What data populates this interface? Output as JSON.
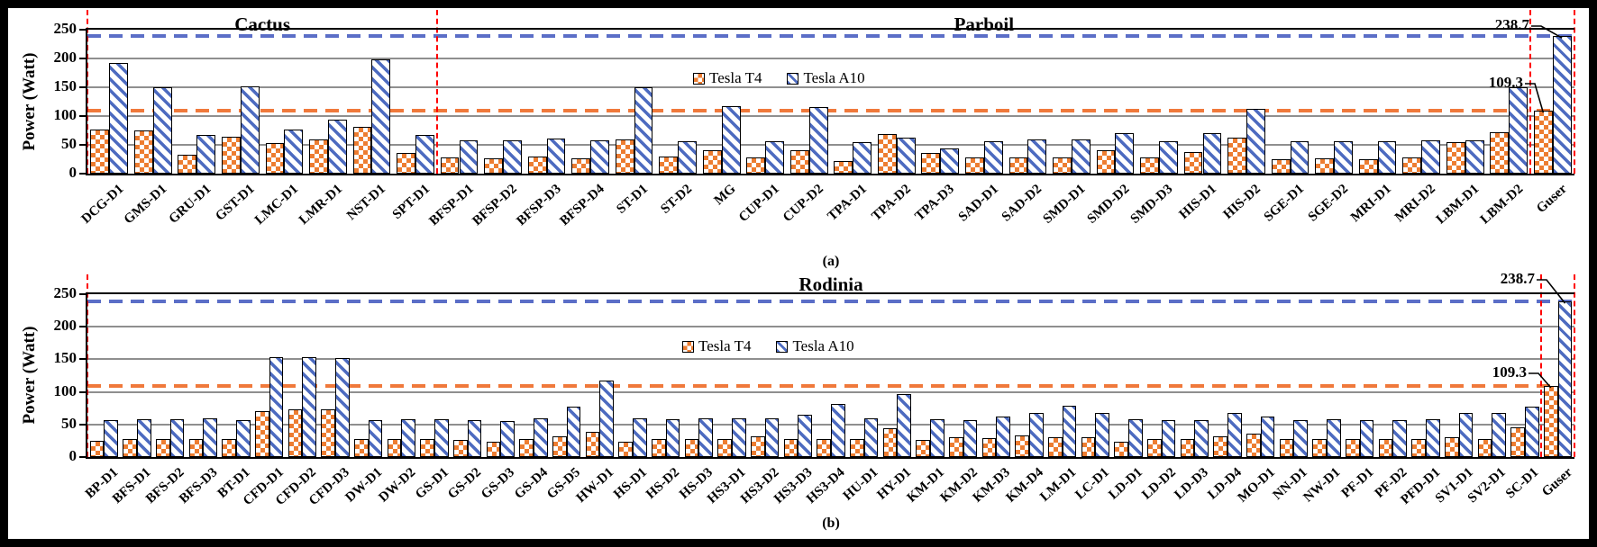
{
  "figure": {
    "ylabel": "Power (Watt)",
    "colors": {
      "tesla_t4": "#ED7D31",
      "tesla_a10": "#4D6BC0",
      "t4_ref_line": "#F0793B",
      "a10_ref_line": "#5B6EC7",
      "divider_line": "#FF0000",
      "gridline": "#8F8F8F",
      "axis": "#000000"
    }
  },
  "chart_data": [
    {
      "type": "bar",
      "sublabel": "(a)",
      "ylabel": "Power (Watt)",
      "ylim": [
        0,
        250
      ],
      "yticks": [
        0,
        50,
        100,
        150,
        200,
        250
      ],
      "grid": true,
      "legend_position": "inside-top-center",
      "title_sections": [
        {
          "label": "Cactus",
          "start": 0,
          "end": 8
        },
        {
          "label": "Parboil",
          "start": 8,
          "end": 33
        }
      ],
      "categories": [
        "DCG-D1",
        "GMS-D1",
        "GRU-D1",
        "GST-D1",
        "LMC-D1",
        "LMR-D1",
        "NST-D1",
        "SPT-D1",
        "BFSP-D1",
        "BFSP-D2",
        "BFSP-D3",
        "BFSP-D4",
        "ST-D1",
        "ST-D2",
        "MG",
        "CUP-D1",
        "CUP-D2",
        "TPA-D1",
        "TPA-D2",
        "TPA-D3",
        "SAD-D1",
        "SAD-D2",
        "SMD-D1",
        "SMD-D2",
        "SMD-D3",
        "HIS-D1",
        "HIS-D2",
        "SGE-D1",
        "SGE-D2",
        "MRI-D1",
        "MRI-D2",
        "LBM-D1",
        "LBM-D2",
        "Guser"
      ],
      "series": [
        {
          "name": "Tesla T4",
          "values": [
            77,
            75,
            33,
            64,
            53,
            60,
            82,
            36,
            28,
            27,
            29,
            27,
            59,
            30,
            40,
            28,
            40,
            22,
            68,
            36,
            28,
            28,
            28,
            40,
            28,
            37,
            62,
            25,
            27,
            25,
            28,
            55,
            72,
            109.3
          ]
        },
        {
          "name": "Tesla A10",
          "values": [
            192,
            150,
            67,
            151,
            77,
            93,
            199,
            67,
            58,
            58,
            61,
            58,
            150,
            57,
            117,
            57,
            116,
            55,
            62,
            44,
            57,
            60,
            60,
            71,
            57,
            71,
            112,
            57,
            57,
            57,
            58,
            58,
            150,
            238.7
          ]
        }
      ],
      "ref_lines": [
        {
          "value": 238.7,
          "style": "dashed",
          "color_key": "a10_ref_line"
        },
        {
          "value": 109.3,
          "style": "dashed",
          "color_key": "t4_ref_line"
        }
      ],
      "annotations": [
        {
          "text": "238.7",
          "target_category": "Guser",
          "target_series": "Tesla A10"
        },
        {
          "text": "109.3",
          "target_category": "Guser",
          "target_series": "Tesla T4"
        }
      ],
      "divider_category_indices": [
        0,
        8,
        33,
        34
      ]
    },
    {
      "type": "bar",
      "sublabel": "(b)",
      "ylabel": "Power (Watt)",
      "ylim": [
        0,
        250
      ],
      "yticks": [
        0,
        50,
        100,
        150,
        200,
        250
      ],
      "grid": true,
      "legend_position": "inside-top-center",
      "title_sections": [
        {
          "label": "Rodinia",
          "start": 0,
          "end": 45
        }
      ],
      "categories": [
        "BP-D1",
        "BFS-D1",
        "BFS-D2",
        "BFS-D3",
        "BT-D1",
        "CFD-D1",
        "CFD-D2",
        "CFD-D3",
        "DW-D1",
        "DW-D2",
        "GS-D1",
        "GS-D2",
        "GS-D3",
        "GS-D4",
        "GS-D5",
        "HW-D1",
        "HS-D1",
        "HS-D2",
        "HS-D3",
        "HS3-D1",
        "HS3-D2",
        "HS3-D3",
        "HS3-D4",
        "HU-D1",
        "HY-D1",
        "KM-D1",
        "KM-D2",
        "KM-D3",
        "KM-D4",
        "LM-D1",
        "LC-D1",
        "LD-D1",
        "LD-D2",
        "LD-D3",
        "LD-D4",
        "MO-D1",
        "NN-D1",
        "NW-D1",
        "PF-D1",
        "PF-D2",
        "PFD-D1",
        "SV1-D1",
        "SV2-D1",
        "SC-D1",
        "Guser"
      ],
      "series": [
        {
          "name": "Tesla T4",
          "values": [
            25,
            27,
            27,
            27,
            27,
            71,
            73,
            73,
            27,
            27,
            27,
            26,
            24,
            27,
            32,
            38,
            24,
            27,
            27,
            28,
            32,
            28,
            28,
            27,
            44,
            26,
            30,
            29,
            33,
            31,
            30,
            23,
            27,
            27,
            32,
            36,
            27,
            27,
            27,
            27,
            28,
            30,
            27,
            46,
            109.3
          ]
        },
        {
          "name": "Tesla A10",
          "values": [
            57,
            58,
            58,
            60,
            57,
            153,
            153,
            152,
            57,
            58,
            58,
            57,
            55,
            59,
            78,
            117,
            60,
            58,
            60,
            59,
            60,
            65,
            81,
            59,
            97,
            58,
            56,
            62,
            68,
            79,
            68,
            58,
            57,
            56,
            67,
            62,
            57,
            58,
            57,
            57,
            58,
            67,
            68,
            77,
            238.7
          ]
        }
      ],
      "ref_lines": [
        {
          "value": 238.7,
          "style": "dashed",
          "color_key": "a10_ref_line"
        },
        {
          "value": 109.3,
          "style": "dashed",
          "color_key": "t4_ref_line"
        }
      ],
      "annotations": [
        {
          "text": "238.7",
          "target_category": "Guser",
          "target_series": "Tesla A10"
        },
        {
          "text": "109.3",
          "target_category": "Guser",
          "target_series": "Tesla T4"
        }
      ],
      "divider_category_indices": [
        0,
        44,
        45
      ]
    }
  ]
}
